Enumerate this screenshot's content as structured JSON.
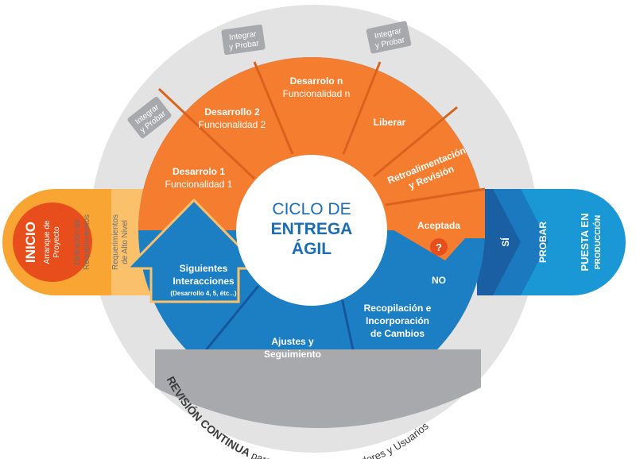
{
  "center": {
    "line1": "CICLO DE",
    "line2": "ENTREGA",
    "line3": "ÁGIL"
  },
  "left_band": {
    "inicio": "INICIO",
    "inicio_sub1": "Arranque de",
    "inicio_sub2": "Proyecto",
    "def1": "Definición de",
    "def2": "Requerimientos",
    "req1": "Requerimientos",
    "req2": "de Alto Nivel"
  },
  "orange_segments": {
    "s1_title": "Desarrolo 1",
    "s1_sub": "Funcionalidad 1",
    "s2_title": "Desarrollo 2",
    "s2_sub": "Funcionalidad 2",
    "sn_title": "Desarrolo n",
    "sn_sub": "Funcionalidad n",
    "liberar": "Liberar",
    "retro1": "Retroalimentación",
    "retro2": "y Revisión",
    "aceptada": "Aceptada",
    "question": "?"
  },
  "tags": {
    "t1_a": "Integrar",
    "t1_b": "y Probar",
    "t2_a": "Integrar",
    "t2_b": "y Probar",
    "t3_a": "Integrar",
    "t3_b": "y Probar"
  },
  "blue_segments": {
    "recop1": "Recopilación e",
    "recop2": "Incorporación",
    "recop3": "de Cambios",
    "ajustes1": "Ajustes y",
    "ajustes2": "Seguimiento",
    "sig1": "Siguientes",
    "sig2": "Interacciones",
    "sig3": "(Desarrollo 4, 5, étc...)",
    "no": "NO"
  },
  "right_band": {
    "si": "SÍ",
    "probar": "PROBAR",
    "puesta1": "PUESTA EN",
    "puesta2": "PRODUCCIÓN"
  },
  "revision": {
    "bold": "REVISIÓN CONTINUA",
    "rest": " para Clientes, Desarrolladores y Usuarios"
  },
  "colors": {
    "orange": "#F47D30",
    "orange_dark": "#E5621B",
    "blue": "#1C7FC4",
    "blue_dark": "#1B5FA3",
    "light_blue": "#1A98D5",
    "navy": "#2B6FB5",
    "gray_ring": "#E3E3E3",
    "gray_band": "#A7A9AC",
    "red": "#E84E1B",
    "yellow": "#F9B233"
  }
}
